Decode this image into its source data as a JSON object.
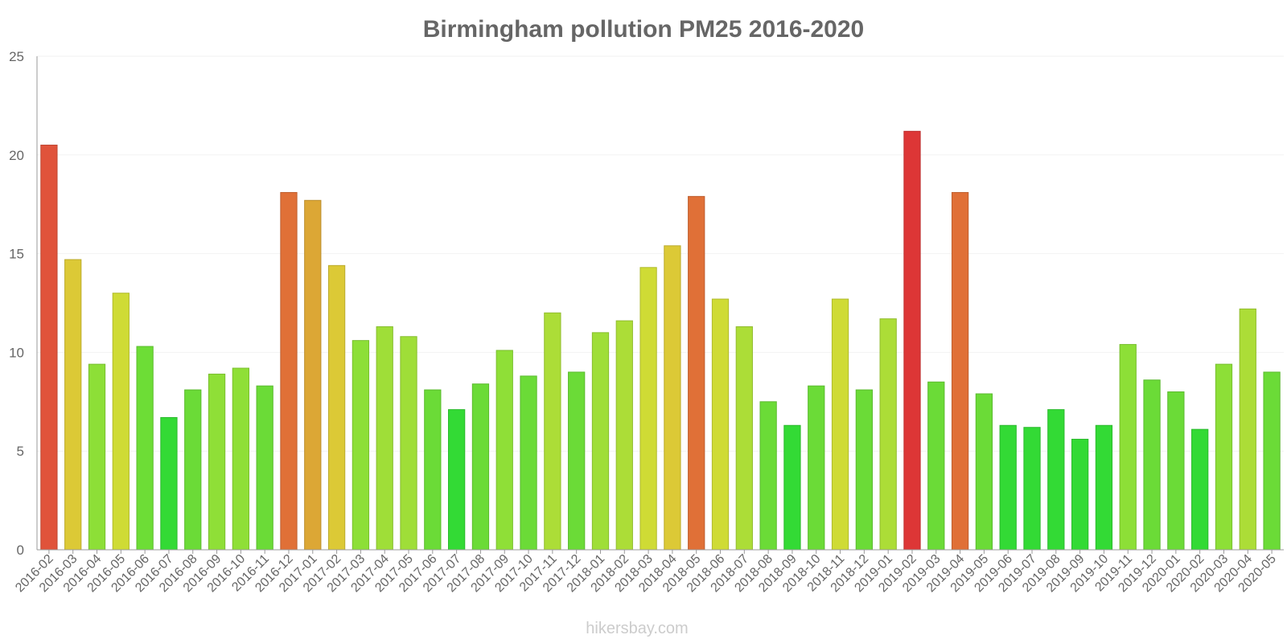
{
  "chart_data": {
    "type": "bar",
    "title": "Birmingham pollution PM25 2016-2020",
    "xlabel": "",
    "ylabel": "",
    "ylim": [
      0,
      25
    ],
    "yticks": [
      0,
      5,
      10,
      15,
      20,
      25
    ],
    "grid": true,
    "categories": [
      "2016-02",
      "2016-03",
      "2016-04",
      "2016-05",
      "2016-06",
      "2016-07",
      "2016-08",
      "2016-09",
      "2016-10",
      "2016-11",
      "2016-12",
      "2017-01",
      "2017-02",
      "2017-03",
      "2017-04",
      "2017-05",
      "2017-06",
      "2017-07",
      "2017-08",
      "2017-09",
      "2017-10",
      "2017-11",
      "2017-12",
      "2018-01",
      "2018-02",
      "2018-03",
      "2018-04",
      "2018-05",
      "2018-06",
      "2018-07",
      "2018-08",
      "2018-09",
      "2018-10",
      "2018-11",
      "2018-12",
      "2019-01",
      "2019-02",
      "2019-03",
      "2019-04",
      "2019-05",
      "2019-06",
      "2019-07",
      "2019-08",
      "2019-09",
      "2019-10",
      "2019-11",
      "2019-12",
      "2020-01",
      "2020-02",
      "2020-03",
      "2020-04",
      "2020-05"
    ],
    "values": [
      20.5,
      14.7,
      9.4,
      13,
      10.3,
      6.7,
      8.1,
      8.9,
      9.2,
      8.3,
      18.1,
      17.7,
      14.4,
      10.6,
      11.3,
      10.8,
      8.1,
      7.1,
      8.4,
      10.1,
      8.8,
      12,
      9,
      11,
      11.6,
      14.3,
      15.4,
      17.9,
      12.7,
      11.3,
      7.5,
      6.3,
      8.3,
      12.7,
      8.1,
      11.7,
      21.2,
      8.5,
      18.1,
      7.9,
      6.3,
      6.2,
      7.1,
      5.6,
      6.3,
      10.4,
      8.6,
      8,
      6.1,
      9.4,
      12.2,
      9
    ],
    "colors": [
      "#e0533b",
      "#dcc936",
      "#8ddf37",
      "#cfdb35",
      "#6ddd36",
      "#33da35",
      "#6bdb37",
      "#8fdf37",
      "#8fdf37",
      "#6bdb37",
      "#e07037",
      "#dca735",
      "#dcc936",
      "#8ddf37",
      "#9fde38",
      "#9fde38",
      "#6bdb37",
      "#33da35",
      "#6bdb37",
      "#8fdf37",
      "#6bdb37",
      "#acdd37",
      "#6bdb37",
      "#9fde38",
      "#acdd37",
      "#cfdb35",
      "#dcc936",
      "#e07037",
      "#cfdb35",
      "#acdd37",
      "#6bdb37",
      "#33da35",
      "#6bdb37",
      "#cfdb35",
      "#6bdb37",
      "#acdd37",
      "#dd3636",
      "#6bdb37",
      "#e07037",
      "#6bdb37",
      "#33da35",
      "#33da35",
      "#33da35",
      "#33da35",
      "#33da35",
      "#8ddf37",
      "#6bdb37",
      "#6bdb37",
      "#33da35",
      "#8ddf37",
      "#acdd37",
      "#6bdb37"
    ]
  },
  "footer": "hikersbay.com"
}
